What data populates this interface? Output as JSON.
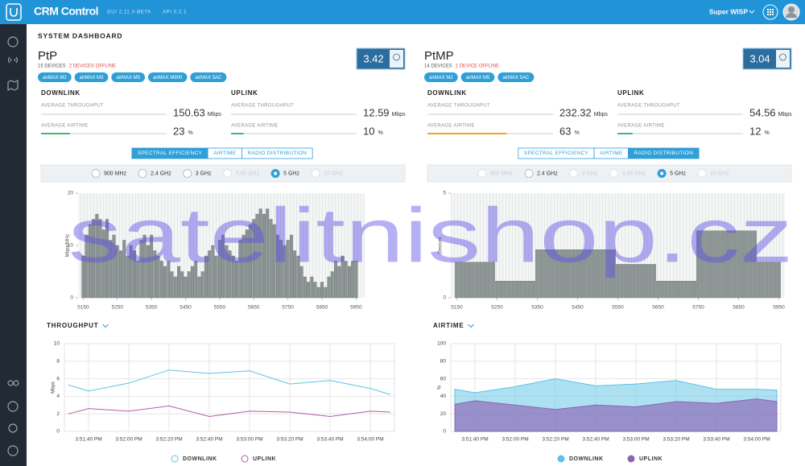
{
  "header": {
    "app_name": "CRM Control",
    "gui_version": "GUI 2.11.0-BETA",
    "api_version": "API 0.2.1",
    "account": "Super WISP"
  },
  "page_title": "SYSTEM DASHBOARD",
  "watermark": "satelitnishop.cz",
  "panels": [
    {
      "name": "PtP",
      "devices": "15 DEVICES",
      "offline": "2 DEVICES OFFLINE",
      "score": 3.42,
      "tags": [
        "airMAX M2",
        "airMAX M3",
        "airMAX M5",
        "airMAX M900",
        "airMAX 5AC"
      ],
      "downlink": {
        "label": "DOWNLINK",
        "throughput_label": "AVERAGE THROUGHPUT",
        "throughput": 150.63,
        "throughput_unit": "Mbps",
        "airtime_label": "AVERAGE AIRTIME",
        "airtime": 23,
        "airtime_unit": "%",
        "airtime_color": "#3dba6c"
      },
      "uplink": {
        "label": "UPLINK",
        "throughput_label": "AVERAGE THROUGHPUT",
        "throughput": 12.59,
        "throughput_unit": "Mbps",
        "airtime_label": "AVERAGE AIRTIME",
        "airtime": 10,
        "airtime_unit": "%",
        "airtime_color": "#3dba6c"
      },
      "tabs": [
        "SPECTRAL EFFICIENCY",
        "AIRTIME",
        "RADIO DISTRIBUTION"
      ],
      "active_tab": 0,
      "bands": [
        {
          "label": "900 MHz",
          "enabled": true
        },
        {
          "label": "2.4 GHz",
          "enabled": true
        },
        {
          "label": "3 GHz",
          "enabled": true
        },
        {
          "label": "3.65 GHz",
          "enabled": false
        },
        {
          "label": "5 GHz",
          "enabled": true
        },
        {
          "label": "10 GHz",
          "enabled": false
        }
      ],
      "selected_band": 4
    },
    {
      "name": "PtMP",
      "devices": "14 DEVICES",
      "offline": "1 DEVICE OFFLINE",
      "score": 3.04,
      "tags": [
        "airMAX M2",
        "airMAX M5",
        "airMAX 5AC"
      ],
      "downlink": {
        "label": "DOWNLINK",
        "throughput_label": "AVERAGE THROUGHPUT",
        "throughput": 232.32,
        "throughput_unit": "Mbps",
        "airtime_label": "AVERAGE AIRTIME",
        "airtime": 63,
        "airtime_unit": "%",
        "airtime_color": "#f0a42c"
      },
      "uplink": {
        "label": "UPLINK",
        "throughput_label": "AVERAGE THROUGHPUT",
        "throughput": 54.56,
        "throughput_unit": "Mbps",
        "airtime_label": "AVERAGE AIRTIME",
        "airtime": 12,
        "airtime_unit": "%",
        "airtime_color": "#3dba6c"
      },
      "tabs": [
        "SPECTRAL EFFICIENCY",
        "AIRTIME",
        "RADIO DISTRIBUTION"
      ],
      "active_tab": 2,
      "bands": [
        {
          "label": "900 MHz",
          "enabled": false
        },
        {
          "label": "2.4 GHz",
          "enabled": true
        },
        {
          "label": "3 GHz",
          "enabled": false
        },
        {
          "label": "3.65 GHz",
          "enabled": false
        },
        {
          "label": "5 GHz",
          "enabled": true
        },
        {
          "label": "10 GHz",
          "enabled": false
        }
      ],
      "selected_band": 4
    }
  ],
  "chart_data": [
    {
      "type": "bar",
      "ylabel": "Mbps/MHz",
      "color": "#8c9494",
      "x": [
        5150,
        5160,
        5170,
        5180,
        5190,
        5200,
        5210,
        5220,
        5230,
        5240,
        5250,
        5260,
        5270,
        5280,
        5290,
        5300,
        5310,
        5320,
        5330,
        5340,
        5350,
        5360,
        5370,
        5380,
        5390,
        5400,
        5410,
        5420,
        5430,
        5440,
        5450,
        5460,
        5470,
        5480,
        5490,
        5500,
        5510,
        5520,
        5530,
        5540,
        5550,
        5560,
        5570,
        5580,
        5590,
        5600,
        5610,
        5620,
        5630,
        5640,
        5650,
        5660,
        5670,
        5680,
        5690,
        5700,
        5710,
        5720,
        5730,
        5740,
        5750,
        5760,
        5770,
        5780,
        5790,
        5800,
        5810,
        5820,
        5830,
        5840,
        5850,
        5860,
        5870,
        5880,
        5890,
        5900,
        5910,
        5920,
        5930,
        5940,
        5950
      ],
      "values": [
        8,
        12,
        14,
        15,
        16,
        15,
        13,
        15,
        11,
        12,
        10,
        9,
        11,
        8,
        10,
        9,
        7,
        11,
        12,
        10,
        12,
        9,
        8,
        7,
        6,
        7,
        5,
        4,
        6,
        5,
        4,
        5,
        6,
        7,
        4,
        5,
        8,
        9,
        10,
        8,
        11,
        12,
        10,
        9,
        8,
        7,
        11,
        12,
        13,
        14,
        15,
        16,
        17,
        16,
        17,
        15,
        14,
        12,
        11,
        10,
        11,
        12,
        9,
        8,
        6,
        4,
        3,
        4,
        3,
        2,
        3,
        2,
        4,
        5,
        7,
        6,
        8,
        7,
        6,
        7,
        7
      ],
      "xlim": [
        5135,
        5975
      ],
      "xticks": [
        5150,
        5250,
        5350,
        5450,
        5550,
        5650,
        5750,
        5850,
        5950
      ],
      "ylim": [
        0,
        20
      ],
      "yticks": [
        0,
        10,
        20
      ]
    },
    {
      "type": "bar",
      "ylabel": "Devices",
      "color": "#8c9494",
      "x": [
        5150,
        5160,
        5170,
        5180,
        5190,
        5200,
        5210,
        5220,
        5230,
        5240,
        5250,
        5260,
        5270,
        5280,
        5290,
        5300,
        5310,
        5320,
        5330,
        5340,
        5350,
        5360,
        5370,
        5380,
        5390,
        5400,
        5410,
        5420,
        5430,
        5440,
        5450,
        5460,
        5470,
        5480,
        5490,
        5500,
        5510,
        5520,
        5530,
        5540,
        5550,
        5560,
        5570,
        5580,
        5590,
        5600,
        5610,
        5620,
        5630,
        5640,
        5650,
        5660,
        5670,
        5680,
        5690,
        5700,
        5710,
        5720,
        5730,
        5740,
        5750,
        5760,
        5770,
        5780,
        5790,
        5800,
        5810,
        5820,
        5830,
        5840,
        5850,
        5860,
        5870,
        5880,
        5890,
        5900,
        5910,
        5920,
        5930,
        5940,
        5950
      ],
      "values": [
        1.7,
        1.7,
        1.7,
        1.7,
        1.7,
        1.7,
        1.7,
        1.7,
        1.7,
        1.7,
        0.8,
        0.8,
        0.8,
        0.8,
        0.8,
        0.8,
        0.8,
        0.8,
        0.8,
        0.8,
        2.3,
        2.3,
        2.3,
        2.3,
        2.3,
        2.3,
        2.3,
        2.3,
        2.3,
        2.3,
        2.3,
        2.3,
        2.3,
        2.3,
        2.3,
        2.3,
        2.3,
        2.3,
        2.3,
        2.3,
        1.6,
        1.6,
        1.6,
        1.6,
        1.6,
        1.6,
        1.6,
        1.6,
        1.6,
        1.6,
        0.8,
        0.8,
        0.8,
        0.8,
        0.8,
        0.8,
        0.8,
        0.8,
        0.8,
        0.8,
        3.2,
        3.2,
        3.2,
        3.2,
        3.2,
        3.2,
        3.2,
        3.2,
        3.2,
        3.2,
        3.2,
        3.2,
        3.2,
        3.2,
        3.2,
        1.7,
        1.7,
        1.7,
        1.7,
        1.7,
        1.7
      ],
      "xlim": [
        5135,
        5965
      ],
      "xticks": [
        5150,
        5250,
        5350,
        5450,
        5550,
        5650,
        5750,
        5850,
        5950
      ],
      "ylim": [
        0,
        5
      ],
      "yticks": [
        0,
        5
      ]
    },
    {
      "type": "line",
      "title": "THROUGHPUT",
      "ylabel": "Mbps",
      "categories": [
        null,
        "3:51:40 PM",
        "3:52:00 PM",
        "3:52:20 PM",
        "3:52:40 PM",
        "3:53:00 PM",
        "3:53:20 PM",
        "3:53:40 PM",
        "3:54:00 PM",
        null
      ],
      "series": [
        {
          "name": "DOWNLINK",
          "color": "#5bc3e6",
          "values": [
            5.3,
            4.6,
            5.5,
            7.0,
            6.6,
            6.9,
            5.4,
            5.8,
            4.9,
            4.2
          ]
        },
        {
          "name": "UPLINK",
          "color": "#b35ca6",
          "values": [
            2.0,
            2.6,
            2.3,
            2.9,
            1.7,
            2.3,
            2.2,
            1.7,
            2.3,
            2.2
          ]
        }
      ],
      "ylim": [
        0,
        10
      ],
      "yticks": [
        0,
        2,
        4,
        6,
        8,
        10
      ],
      "grid": true
    },
    {
      "type": "area",
      "title": "AIRTIME",
      "ylabel": "%",
      "categories": [
        null,
        "3:51:40 PM",
        "3:52:00 PM",
        "3:52:20 PM",
        "3:52:40 PM",
        "3:53:00 PM",
        "3:53:20 PM",
        "3:53:40 PM",
        "3:54:00 PM",
        null
      ],
      "series": [
        {
          "name": "DOWNLINK",
          "color": "#5bc3e6",
          "values": [
            48,
            44,
            51,
            60,
            52,
            54,
            58,
            48,
            48,
            47
          ]
        },
        {
          "name": "UPLINK",
          "color": "#8c64b4",
          "values": [
            31,
            35,
            30,
            25,
            30,
            28,
            34,
            32,
            37,
            34
          ]
        }
      ],
      "ylim": [
        0,
        100
      ],
      "yticks": [
        0,
        20,
        40,
        60,
        80,
        100
      ],
      "grid": true
    }
  ]
}
